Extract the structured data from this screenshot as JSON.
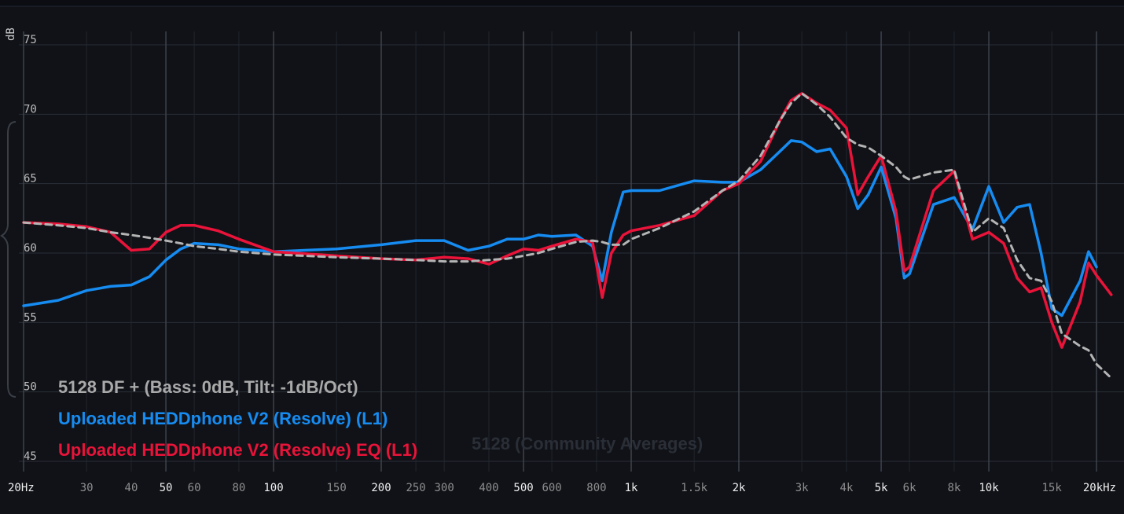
{
  "chart_data": {
    "type": "line",
    "y_label": "dB",
    "watermark": "5128 (Community Averages)",
    "log_x": true,
    "grid": true,
    "xlim": [
      20,
      20000
    ],
    "ylim": [
      45,
      75
    ],
    "yticks": [
      45,
      50,
      55,
      60,
      65,
      70,
      75
    ],
    "xticks": [
      {
        "value": 20,
        "label": "20Hz"
      },
      30,
      40,
      50,
      60,
      80,
      100,
      150,
      200,
      250,
      300,
      400,
      500,
      600,
      800,
      {
        "value": 1000,
        "label": "1k"
      },
      {
        "value": 1500,
        "label": "1.5k"
      },
      {
        "value": 2000,
        "label": "2k"
      },
      {
        "value": 3000,
        "label": "3k"
      },
      {
        "value": 4000,
        "label": "4k"
      },
      {
        "value": 5000,
        "label": "5k"
      },
      {
        "value": 6000,
        "label": "6k"
      },
      {
        "value": 8000,
        "label": "8k"
      },
      {
        "value": 10000,
        "label": "10k"
      },
      {
        "value": 15000,
        "label": "15k"
      },
      {
        "value": 20000,
        "label": "20kHz"
      }
    ],
    "x": [
      20,
      25,
      30,
      35,
      40,
      45,
      50,
      55,
      60,
      70,
      80,
      100,
      150,
      200,
      250,
      300,
      350,
      400,
      450,
      500,
      550,
      600,
      700,
      780,
      830,
      880,
      950,
      1000,
      1200,
      1500,
      1800,
      2000,
      2300,
      2600,
      2800,
      3000,
      3300,
      3600,
      4000,
      4300,
      4600,
      5000,
      5500,
      5800,
      6000,
      7000,
      8000,
      9000,
      10000,
      11000,
      12000,
      13000,
      14000,
      15000,
      16000,
      18000,
      19000,
      20000,
      22000
    ],
    "series": [
      {
        "name": "5128 DF + (Bass: 0dB, Tilt: -1dB/Oct)",
        "color": "#b4b4b4",
        "dashed": true,
        "values": [
          62.2,
          62.0,
          61.8,
          61.5,
          61.3,
          61.1,
          60.9,
          60.7,
          60.5,
          60.3,
          60.1,
          59.9,
          59.7,
          59.6,
          59.5,
          59.4,
          59.4,
          59.5,
          59.6,
          59.8,
          60.0,
          60.3,
          60.8,
          60.9,
          60.8,
          60.6,
          60.6,
          61.0,
          61.8,
          63.0,
          64.5,
          65.2,
          67.0,
          69.5,
          70.8,
          71.5,
          70.7,
          69.8,
          68.3,
          67.8,
          67.6,
          67.0,
          66.2,
          65.5,
          65.3,
          65.8,
          66.0,
          61.5,
          62.5,
          61.8,
          59.5,
          58.2,
          58.0,
          56.5,
          54.2,
          53.3,
          53.0,
          52.0,
          51.0
        ]
      },
      {
        "name": "Uploaded HEDDphone V2 (Resolve) (L1)",
        "color": "#168cf2",
        "dashed": false,
        "values": [
          56.2,
          56.6,
          57.3,
          57.6,
          57.7,
          58.3,
          59.5,
          60.3,
          60.7,
          60.6,
          60.3,
          60.1,
          60.3,
          60.6,
          60.9,
          60.9,
          60.2,
          60.5,
          61.0,
          61.0,
          61.3,
          61.2,
          61.3,
          60.5,
          58.0,
          61.5,
          64.4,
          64.5,
          64.5,
          65.2,
          65.1,
          65.1,
          66.0,
          67.3,
          68.1,
          68.0,
          67.3,
          67.5,
          65.5,
          63.2,
          64.2,
          66.2,
          62.5,
          58.2,
          58.5,
          63.5,
          64.0,
          61.7,
          64.8,
          62.2,
          63.3,
          63.5,
          60.0,
          56.0,
          55.5,
          58.0,
          60.1,
          59.0,
          null
        ]
      },
      {
        "name": "Uploaded HEDDphone V2 (Resolve) EQ (L1)",
        "color": "#ea1339",
        "dashed": false,
        "values": [
          62.2,
          62.1,
          61.9,
          61.5,
          60.2,
          60.3,
          61.5,
          62.0,
          62.0,
          61.6,
          61.0,
          60.1,
          59.8,
          59.6,
          59.5,
          59.7,
          59.6,
          59.2,
          59.8,
          60.3,
          60.2,
          60.5,
          61.0,
          60.8,
          56.8,
          60.0,
          61.3,
          61.6,
          62.0,
          62.7,
          64.5,
          65.0,
          66.6,
          69.5,
          71.0,
          71.5,
          70.8,
          70.3,
          69.0,
          64.2,
          65.5,
          67.0,
          63.0,
          58.7,
          59.0,
          64.5,
          65.9,
          61.0,
          61.5,
          60.7,
          58.2,
          57.2,
          57.5,
          55.0,
          53.2,
          56.5,
          59.3,
          58.4,
          57.0
        ]
      }
    ]
  }
}
